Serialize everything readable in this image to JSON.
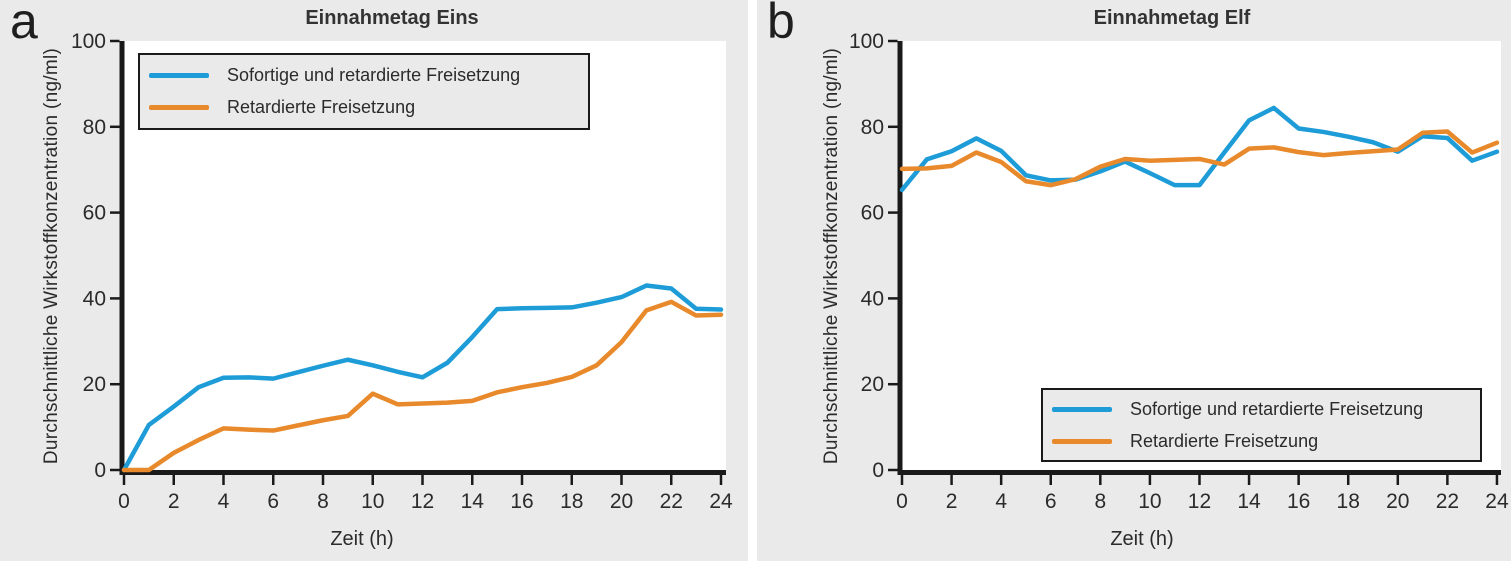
{
  "figure": {
    "background": "#FFFFFF",
    "panel_background": "#EAEAEA",
    "plot_background": "#FFFFFF",
    "axis_color": "#1A1A1A",
    "text_color": "#2B2B2B",
    "accent_blue": "#1E9CD7",
    "accent_orange": "#E8892B"
  },
  "panels": [
    {
      "letter": "a"
    },
    {
      "letter": "b"
    }
  ],
  "chart_data": [
    {
      "type": "line",
      "title": "Einnahmetag Eins",
      "xlabel": "Zeit (h)",
      "ylabel": "Durchschnittliche Wirkstoffkonzentration (ng/ml)",
      "xlim": [
        0,
        24
      ],
      "ylim": [
        0,
        100
      ],
      "xticks": [
        0,
        2,
        4,
        6,
        8,
        10,
        12,
        14,
        16,
        18,
        20,
        22,
        24
      ],
      "yticks": [
        0,
        20,
        40,
        60,
        80,
        100
      ],
      "grid": false,
      "legend_position": "top-left",
      "x": [
        0,
        1,
        2,
        3,
        4,
        5,
        6,
        7,
        8,
        9,
        10,
        11,
        12,
        13,
        14,
        15,
        16,
        17,
        18,
        19,
        20,
        21,
        22,
        23,
        24
      ],
      "series": [
        {
          "name": "Sofortige und retardierte Freisetzung",
          "color": "#1E9CD7",
          "values": [
            0,
            10.5,
            14.8,
            19.3,
            21.5,
            21.6,
            21.3,
            22.8,
            24.3,
            25.7,
            24.4,
            22.9,
            21.6,
            25.0,
            31.0,
            37.5,
            37.7,
            37.8,
            37.9,
            39.0,
            40.3,
            43.0,
            42.3,
            37.6,
            37.4
          ]
        },
        {
          "name": "Retardierte Freisetzung",
          "color": "#E8892B",
          "values": [
            0,
            0,
            4.0,
            7.0,
            9.7,
            9.4,
            9.2,
            10.4,
            11.6,
            12.6,
            17.8,
            15.3,
            15.5,
            15.7,
            16.1,
            18.1,
            19.3,
            20.3,
            21.7,
            24.4,
            29.8,
            37.2,
            39.2,
            36.0,
            36.2
          ]
        }
      ]
    },
    {
      "type": "line",
      "title": "Einnahmetag Elf",
      "xlabel": "Zeit (h)",
      "ylabel": "Durchschnittliche Wirkstoffkonzentration (ng/ml)",
      "xlim": [
        0,
        24
      ],
      "ylim": [
        0,
        100
      ],
      "xticks": [
        0,
        2,
        4,
        6,
        8,
        10,
        12,
        14,
        16,
        18,
        20,
        22,
        24
      ],
      "yticks": [
        0,
        20,
        40,
        60,
        80,
        100
      ],
      "grid": false,
      "legend_position": "bottom-right",
      "x": [
        0,
        1,
        2,
        3,
        4,
        5,
        6,
        7,
        8,
        9,
        10,
        11,
        12,
        13,
        14,
        15,
        16,
        17,
        18,
        19,
        20,
        21,
        22,
        23,
        24
      ],
      "series": [
        {
          "name": "Sofortige und retardierte Freisetzung",
          "color": "#1E9CD7",
          "values": [
            65.3,
            72.4,
            74.3,
            77.3,
            74.4,
            68.7,
            67.5,
            67.7,
            69.6,
            71.9,
            69.2,
            66.4,
            66.4,
            74.0,
            81.5,
            84.4,
            79.6,
            78.8,
            77.7,
            76.4,
            74.2,
            77.8,
            77.4,
            72.1,
            74.2
          ]
        },
        {
          "name": "Retardierte Freisetzung",
          "color": "#E8892B",
          "values": [
            70.2,
            70.3,
            70.9,
            74.0,
            71.8,
            67.3,
            66.4,
            67.8,
            70.7,
            72.5,
            72.1,
            72.3,
            72.5,
            71.2,
            74.9,
            75.2,
            74.1,
            73.4,
            73.9,
            74.3,
            74.7,
            78.6,
            78.9,
            74.0,
            76.3
          ]
        }
      ]
    }
  ]
}
